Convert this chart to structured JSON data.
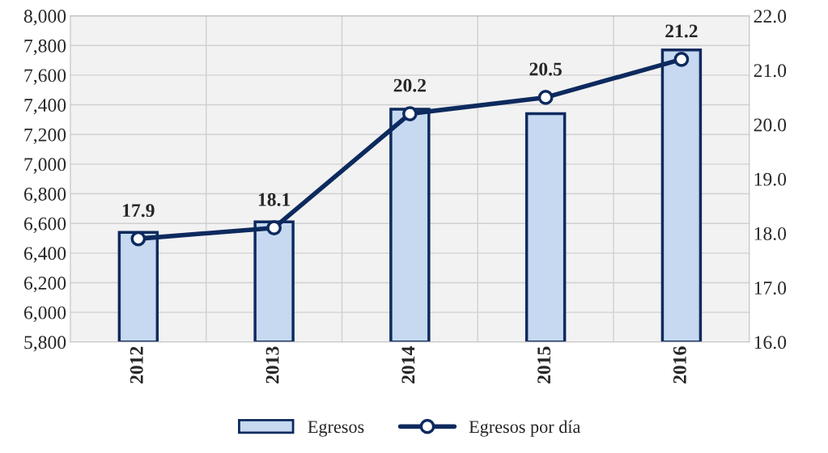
{
  "chart_data": {
    "type": "bar",
    "categories": [
      "2012",
      "2013",
      "2014",
      "2015",
      "2016"
    ],
    "series": [
      {
        "name": "Egresos",
        "color": "#c6d9f1",
        "values": [
          6540,
          6610,
          7370,
          7340,
          7770
        ]
      },
      {
        "name": "Egresos por día",
        "type": "line",
        "axis": "y2",
        "color": "#0d2a5e",
        "values": [
          17.9,
          18.1,
          20.2,
          20.5,
          21.2
        ],
        "data_labels": true
      }
    ],
    "ylim": [
      5800,
      8000
    ],
    "yticks": [
      {
        "value": 5800,
        "label": "5,800"
      },
      {
        "value": 6000,
        "label": "6,000"
      },
      {
        "value": 6200,
        "label": "6,200"
      },
      {
        "value": 6400,
        "label": "6,400"
      },
      {
        "value": 6600,
        "label": "6,600"
      },
      {
        "value": 6800,
        "label": "6,800"
      },
      {
        "value": 7000,
        "label": "7,000"
      },
      {
        "value": 7200,
        "label": "7,200"
      },
      {
        "value": 7400,
        "label": "7,400"
      },
      {
        "value": 7600,
        "label": "7,600"
      },
      {
        "value": 7800,
        "label": "7,800"
      },
      {
        "value": 8000,
        "label": "8,000"
      }
    ],
    "y2lim": [
      16,
      22
    ],
    "y2ticks": [
      {
        "value": 16,
        "label": "16.0"
      },
      {
        "value": 17,
        "label": "17.0"
      },
      {
        "value": 18,
        "label": "18.0"
      },
      {
        "value": 19,
        "label": "19.0"
      },
      {
        "value": 20,
        "label": "20.0"
      },
      {
        "value": 21,
        "label": "21.0"
      },
      {
        "value": 22,
        "label": "22.0"
      }
    ],
    "grid": true,
    "legend": "bottom",
    "marker": "circle"
  }
}
